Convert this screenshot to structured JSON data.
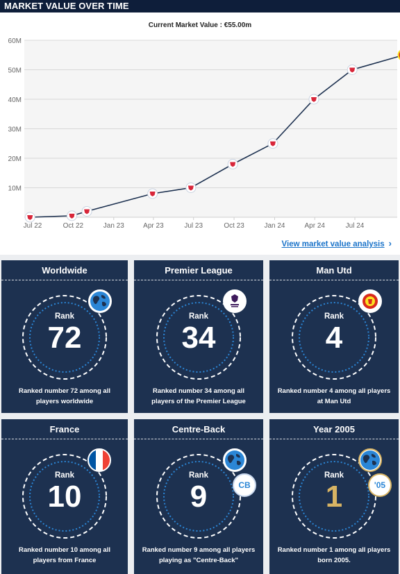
{
  "header": {
    "title": "MARKET VALUE OVER TIME"
  },
  "chart_data": {
    "type": "line",
    "title": "Current Market Value : €55.00m",
    "xlabel": "",
    "ylabel": "",
    "x_ticks": [
      "Jul 22",
      "Oct 22",
      "Jan 23",
      "Apr 23",
      "Jul 23",
      "Oct 23",
      "Jan 24",
      "Apr 24",
      "Jul 24"
    ],
    "y_ticks": [
      "10M",
      "20M",
      "30M",
      "40M",
      "50M",
      "60M"
    ],
    "ylim": [
      0,
      60
    ],
    "grid": true,
    "x": [
      "2022-06-25",
      "2022-09-28",
      "2022-11-01",
      "2023-03-30",
      "2023-06-25",
      "2023-09-28",
      "2023-12-28",
      "2024-03-30",
      "2024-06-25",
      "2024-10-20"
    ],
    "values": [
      0,
      0.5,
      2,
      8,
      10,
      18,
      25,
      40,
      50,
      55
    ],
    "series": [
      {
        "name": "",
        "values": [
          0,
          0.5,
          2,
          8,
          10,
          18,
          25,
          40,
          50,
          55
        ]
      }
    ],
    "line_color": "#1d3150",
    "marker_color": "#d8263a"
  },
  "analysis_link": {
    "label": "View market value analysis",
    "chevron": "›"
  },
  "rankings": [
    {
      "title": "Worldwide",
      "rank_label": "Rank",
      "rank": "72",
      "description": "Ranked number 72 among all players worldwide",
      "badge": "globe-icon"
    },
    {
      "title": "Premier League",
      "rank_label": "Rank",
      "rank": "34",
      "description": "Ranked number 34 among all players of the Premier League",
      "badge": "premier-league-logo"
    },
    {
      "title": "Man Utd",
      "rank_label": "Rank",
      "rank": "4",
      "description": "Ranked number 4 among all players at Man Utd",
      "badge": "man-utd-crest"
    },
    {
      "title": "France",
      "rank_label": "Rank",
      "rank": "10",
      "description": "Ranked number 10 among all players from France",
      "badge": "france-flag"
    },
    {
      "title": "Centre-Back",
      "rank_label": "Rank",
      "rank": "9",
      "description": "Ranked number 9 among all players playing as \"Centre-Back\"",
      "badge": "globe-icon",
      "tag": "CB"
    },
    {
      "title": "Year 2005",
      "rank_label": "Rank",
      "rank": "1",
      "description": "Ranked number 1 among all players born 2005.",
      "badge": "globe-icon",
      "tag": "'05"
    }
  ],
  "colors": {
    "navy": "#1d3150",
    "header": "#0e1e3a",
    "accent_blue": "#2b86d6",
    "gold": "#d8b464",
    "link": "#1a73c9"
  }
}
